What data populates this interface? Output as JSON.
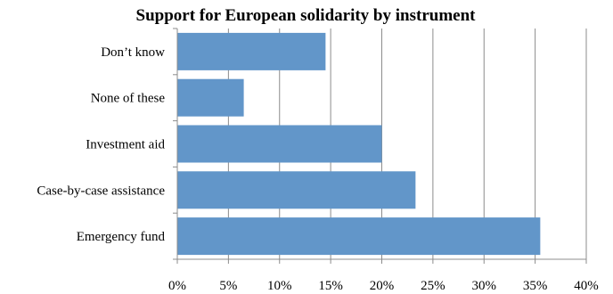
{
  "chart_data": {
    "type": "bar",
    "orientation": "horizontal",
    "title": "Support for European solidarity by instrument",
    "categories": [
      "Don’t know",
      "None of these",
      "Investment aid",
      "Case-by-case assistance",
      "Emergency fund"
    ],
    "values": [
      14.5,
      6.5,
      20.0,
      23.3,
      35.5
    ],
    "x_ticks": [
      "0%",
      "5%",
      "10%",
      "15%",
      "20%",
      "25%",
      "30%",
      "35%",
      "40%"
    ],
    "xlim": [
      0,
      40
    ],
    "xlabel": "",
    "ylabel": "",
    "grid": true,
    "legend": "none",
    "bar_color": "#6296c9",
    "grid_color": "#8c8c8c"
  }
}
